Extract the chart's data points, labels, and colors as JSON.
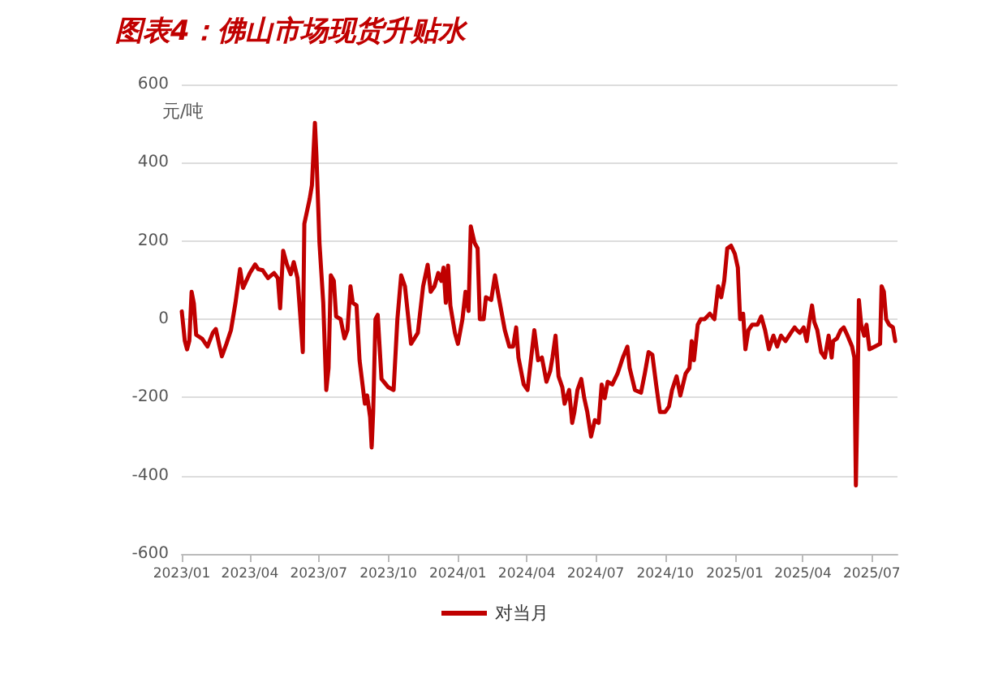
{
  "chart_data": {
    "type": "line",
    "title": "图表4：佛山市场现货升贴水",
    "ylabel": "元/吨",
    "xlim": [
      "2023-01-01",
      "2025-08-04"
    ],
    "xticks": [
      {
        "value": "2023-01",
        "label": "2023/01"
      },
      {
        "value": "2023-04",
        "label": "2023/04"
      },
      {
        "value": "2023-07",
        "label": "2023/07"
      },
      {
        "value": "2023-10",
        "label": "2023/10"
      },
      {
        "value": "2024-01",
        "label": "2024/01"
      },
      {
        "value": "2024-04",
        "label": "2024/04"
      },
      {
        "value": "2024-07",
        "label": "2024/07"
      },
      {
        "value": "2024-10",
        "label": "2024/10"
      },
      {
        "value": "2025-01",
        "label": "2025/01"
      },
      {
        "value": "2025-04",
        "label": "2025/04"
      },
      {
        "value": "2025-07",
        "label": "2025/07"
      }
    ],
    "ylim": [
      -600,
      600
    ],
    "yticks": [
      -600,
      -400,
      -200,
      0,
      200,
      400,
      600
    ],
    "grid": "y",
    "legend": "bottom",
    "marker": "none",
    "line_style": "solid",
    "x": [
      "2023-01-01",
      "2023-01-05",
      "2023-01-08",
      "2023-01-11",
      "2023-01-14",
      "2023-01-17",
      "2023-01-20",
      "2023-01-28",
      "2023-02-04",
      "2023-02-11",
      "2023-02-15",
      "2023-02-20",
      "2023-02-23",
      "2023-03-01",
      "2023-03-07",
      "2023-03-13",
      "2023-03-19",
      "2023-03-23",
      "2023-04-01",
      "2023-04-08",
      "2023-04-12",
      "2023-04-18",
      "2023-04-25",
      "2023-05-03",
      "2023-05-08",
      "2023-05-11",
      "2023-05-15",
      "2023-05-20",
      "2023-05-25",
      "2023-05-29",
      "2023-06-03",
      "2023-06-07",
      "2023-06-10",
      "2023-06-12",
      "2023-06-19",
      "2023-06-22",
      "2023-06-26",
      "2023-06-28",
      "2023-07-02",
      "2023-07-07",
      "2023-07-11",
      "2023-07-14",
      "2023-07-17",
      "2023-07-21",
      "2023-07-24",
      "2023-07-30",
      "2023-08-04",
      "2023-08-08",
      "2023-08-12",
      "2023-08-15",
      "2023-08-20",
      "2023-08-24",
      "2023-08-31",
      "2023-09-03",
      "2023-09-07",
      "2023-09-09",
      "2023-09-11",
      "2023-09-14",
      "2023-09-17",
      "2023-09-22",
      "2023-10-01",
      "2023-10-08",
      "2023-10-13",
      "2023-10-18",
      "2023-10-23",
      "2023-10-31",
      "2023-11-09",
      "2023-11-16",
      "2023-11-22",
      "2023-11-26",
      "2023-12-01",
      "2023-12-06",
      "2023-12-10",
      "2023-12-13",
      "2023-12-16",
      "2023-12-19",
      "2023-12-22",
      "2023-12-28",
      "2024-01-01",
      "2024-01-07",
      "2024-01-11",
      "2024-01-15",
      "2024-01-18",
      "2024-01-23",
      "2024-01-27",
      "2024-01-30",
      "2024-02-04",
      "2024-02-07",
      "2024-02-14",
      "2024-02-19",
      "2024-02-24",
      "2024-03-03",
      "2024-03-09",
      "2024-03-14",
      "2024-03-18",
      "2024-03-21",
      "2024-03-28",
      "2024-04-02",
      "2024-04-06",
      "2024-04-11",
      "2024-04-16",
      "2024-04-21",
      "2024-04-27",
      "2024-05-02",
      "2024-05-05",
      "2024-05-09",
      "2024-05-13",
      "2024-05-18",
      "2024-05-21",
      "2024-05-27",
      "2024-05-31",
      "2024-06-03",
      "2024-06-07",
      "2024-06-12",
      "2024-06-16",
      "2024-06-20",
      "2024-06-25",
      "2024-06-30",
      "2024-07-05",
      "2024-07-09",
      "2024-07-13",
      "2024-07-17",
      "2024-07-23",
      "2024-07-30",
      "2024-08-06",
      "2024-08-12",
      "2024-08-15",
      "2024-08-22",
      "2024-08-30",
      "2024-09-04",
      "2024-09-09",
      "2024-09-14",
      "2024-09-19",
      "2024-09-24",
      "2024-10-01",
      "2024-10-06",
      "2024-10-10",
      "2024-10-16",
      "2024-10-21",
      "2024-10-28",
      "2024-11-02",
      "2024-11-05",
      "2024-11-08",
      "2024-11-13",
      "2024-11-17",
      "2024-11-22",
      "2024-11-29",
      "2024-12-05",
      "2024-12-10",
      "2024-12-14",
      "2024-12-18",
      "2024-12-22",
      "2024-12-27",
      "2025-01-01",
      "2025-01-05",
      "2025-01-08",
      "2025-01-12",
      "2025-01-15",
      "2025-01-19",
      "2025-01-24",
      "2025-01-31",
      "2025-02-05",
      "2025-02-10",
      "2025-02-15",
      "2025-02-21",
      "2025-02-26",
      "2025-03-03",
      "2025-03-09",
      "2025-03-16",
      "2025-03-21",
      "2025-03-24",
      "2025-03-28",
      "2025-04-02",
      "2025-04-06",
      "2025-04-10",
      "2025-04-13",
      "2025-04-16",
      "2025-04-20",
      "2025-04-25",
      "2025-04-30",
      "2025-05-05",
      "2025-05-09",
      "2025-05-11",
      "2025-05-16",
      "2025-05-21",
      "2025-05-25",
      "2025-05-30",
      "2025-06-05",
      "2025-06-08",
      "2025-06-10",
      "2025-06-12",
      "2025-06-14",
      "2025-06-17",
      "2025-06-21",
      "2025-06-24",
      "2025-06-28",
      "2025-07-05",
      "2025-07-12",
      "2025-07-14",
      "2025-07-17",
      "2025-07-20",
      "2025-07-24",
      "2025-07-29",
      "2025-08-01"
    ],
    "series": [
      {
        "name": "对当月",
        "color": "#c00000",
        "values": [
          20,
          -55,
          -77,
          -55,
          70,
          40,
          -40,
          -50,
          -70,
          -35,
          -25,
          -70,
          -95,
          -63,
          -28,
          42,
          128,
          80,
          118,
          140,
          128,
          125,
          105,
          118,
          105,
          28,
          175,
          140,
          115,
          146,
          105,
          0,
          -84,
          244,
          307,
          342,
          502,
          418,
          195,
          42,
          -181,
          -125,
          112,
          98,
          7,
          0,
          -49,
          -28,
          84,
          42,
          35,
          -105,
          -216,
          -195,
          -251,
          -328,
          -237,
          0,
          11,
          -153,
          -174,
          -181,
          0,
          112,
          84,
          -63,
          -35,
          84,
          139,
          70,
          84,
          118,
          98,
          132,
          42,
          137,
          35,
          -35,
          -63,
          0,
          70,
          21,
          237,
          195,
          181,
          0,
          0,
          56,
          49,
          112,
          56,
          -28,
          -70,
          -70,
          -21,
          -98,
          -167,
          -181,
          -112,
          -28,
          -105,
          -98,
          -160,
          -132,
          -98,
          -42,
          -146,
          -174,
          -216,
          -181,
          -265,
          -237,
          -181,
          -153,
          -202,
          -237,
          -300,
          -258,
          -265,
          -167,
          -202,
          -160,
          -167,
          -139,
          -98,
          -70,
          -125,
          -181,
          -188,
          -139,
          -84,
          -91,
          -167,
          -237,
          -237,
          -223,
          -181,
          -146,
          -195,
          -139,
          -125,
          -56,
          -105,
          -14,
          0,
          0,
          14,
          0,
          84,
          56,
          98,
          181,
          188,
          167,
          132,
          0,
          14,
          -77,
          -28,
          -14,
          -14,
          7,
          -28,
          -77,
          -42,
          -70,
          -42,
          -56,
          -35,
          -21,
          -28,
          -35,
          -21,
          -56,
          0,
          35,
          -7,
          -28,
          -84,
          -98,
          -42,
          -98,
          -56,
          -49,
          -28,
          -21,
          -42,
          -70,
          -98,
          -425,
          -209,
          49,
          -14,
          -42,
          -14,
          -77,
          -70,
          -63,
          84,
          70,
          0,
          -14,
          -21,
          -56
        ]
      }
    ]
  }
}
